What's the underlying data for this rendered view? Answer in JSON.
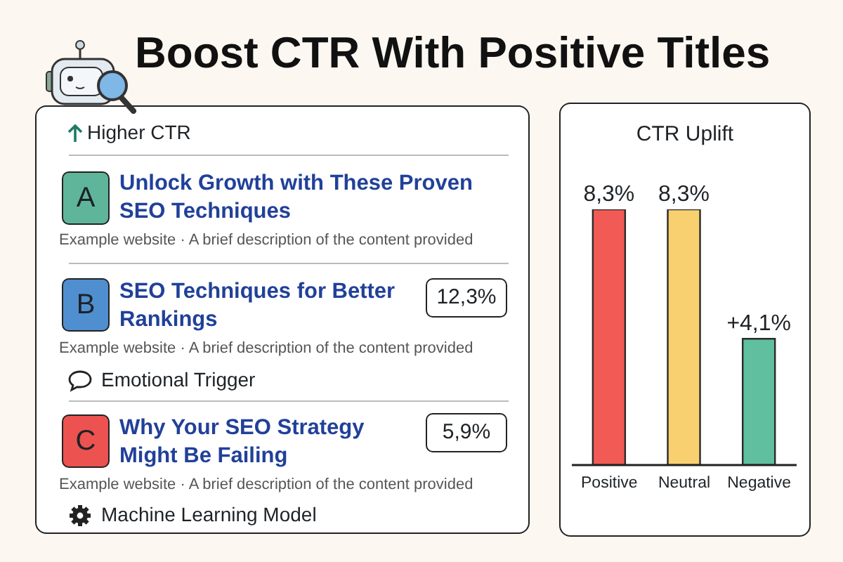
{
  "chart_data": [
    {
      "type": "other",
      "title": "Boost CTR With Positive Titles",
      "annotations": [
        "Higher CTR",
        "A",
        "Unlock Growth with These Proven SEO Techniques",
        "Example website · A brief description of the content provided",
        "B",
        "SEO Techniques for Better Rankings",
        "12,3%",
        "Example website · A brief description of the content provided",
        "Emotional Trigger",
        "C",
        "Why Your SEO Strategy Might Be Failing",
        "5,9%",
        "Example website · A brief description of the content provided",
        "Machine Learning Model"
      ]
    },
    {
      "type": "bar",
      "title": "CTR Uplift",
      "categories": [
        "Positive",
        "Neutral",
        "Negative"
      ],
      "values": [
        8.3,
        8.3,
        4.1
      ],
      "colors": [
        "#f25a55",
        "#f8d06f",
        "#5fbf9f"
      ],
      "value_labels": [
        "8,3%",
        "8,3%",
        "+4,1%"
      ]
    }
  ]
}
